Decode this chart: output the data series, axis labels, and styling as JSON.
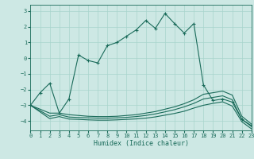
{
  "xlabel": "Humidex (Indice chaleur)",
  "bg_color": "#cde8e4",
  "grid_color": "#a8d4cc",
  "line_color": "#1a6b5a",
  "xlim": [
    0,
    23
  ],
  "ylim": [
    -4.6,
    3.4
  ],
  "yticks": [
    -4,
    -3,
    -2,
    -1,
    0,
    1,
    2,
    3
  ],
  "xticks": [
    0,
    1,
    2,
    3,
    4,
    5,
    6,
    7,
    8,
    9,
    10,
    11,
    12,
    13,
    14,
    15,
    16,
    17,
    18,
    19,
    20,
    21,
    22,
    23
  ],
  "series1_x": [
    0,
    1,
    2,
    3,
    4,
    5,
    6,
    7,
    8,
    9,
    10,
    11,
    12,
    13,
    14,
    15,
    16,
    17,
    18,
    19,
    20,
    21,
    22,
    23
  ],
  "series1_y": [
    -3.0,
    -2.2,
    -1.6,
    -3.5,
    -2.6,
    0.2,
    -0.15,
    -0.3,
    0.8,
    1.0,
    1.4,
    1.8,
    2.4,
    1.9,
    2.85,
    2.2,
    1.6,
    2.2,
    -1.7,
    -2.7,
    -2.6,
    -2.8,
    -3.9,
    -4.3
  ],
  "series2_x": [
    0,
    2,
    3,
    4,
    5,
    6,
    7,
    8,
    9,
    10,
    11,
    12,
    13,
    14,
    15,
    16,
    17,
    18,
    19,
    20,
    21,
    22,
    23
  ],
  "series2_y": [
    -3.0,
    -3.5,
    -3.5,
    -3.6,
    -3.65,
    -3.7,
    -3.72,
    -3.72,
    -3.7,
    -3.65,
    -3.6,
    -3.5,
    -3.4,
    -3.25,
    -3.1,
    -2.9,
    -2.65,
    -2.3,
    -2.2,
    -2.1,
    -2.35,
    -3.7,
    -4.2
  ],
  "series3_x": [
    0,
    2,
    3,
    4,
    5,
    6,
    7,
    8,
    9,
    10,
    11,
    12,
    13,
    14,
    15,
    16,
    17,
    18,
    19,
    20,
    21,
    22,
    23
  ],
  "series3_y": [
    -3.0,
    -3.7,
    -3.6,
    -3.75,
    -3.78,
    -3.8,
    -3.82,
    -3.82,
    -3.8,
    -3.77,
    -3.72,
    -3.65,
    -3.55,
    -3.42,
    -3.28,
    -3.1,
    -2.88,
    -2.6,
    -2.5,
    -2.4,
    -2.65,
    -3.9,
    -4.35
  ],
  "series4_x": [
    0,
    2,
    3,
    4,
    5,
    6,
    7,
    8,
    9,
    10,
    11,
    12,
    13,
    14,
    15,
    16,
    17,
    18,
    19,
    20,
    21,
    22,
    23
  ],
  "series4_y": [
    -3.0,
    -3.85,
    -3.72,
    -3.88,
    -3.9,
    -3.93,
    -3.95,
    -3.95,
    -3.93,
    -3.9,
    -3.87,
    -3.82,
    -3.74,
    -3.63,
    -3.52,
    -3.38,
    -3.18,
    -3.0,
    -2.88,
    -2.78,
    -3.05,
    -4.05,
    -4.5
  ]
}
